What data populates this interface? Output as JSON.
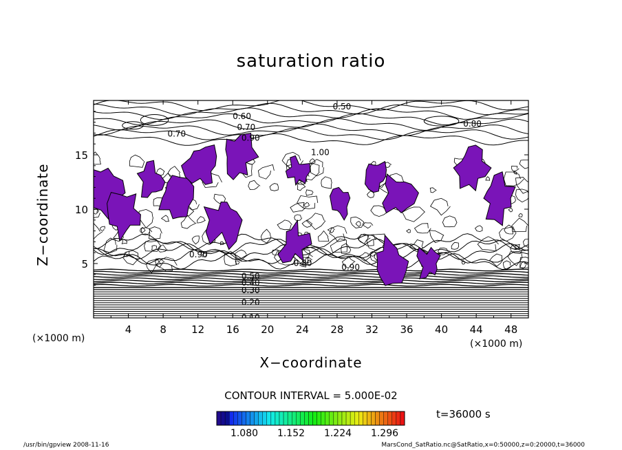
{
  "chart_data": {
    "type": "heatmap",
    "title": "saturation ratio",
    "xlabel": "X−coordinate",
    "ylabel": "Z−coordinate",
    "x_unit_left": "(×1000 m)",
    "x_unit_right": "(×1000 m)",
    "xlim": [
      0,
      50
    ],
    "ylim": [
      0,
      20
    ],
    "x_ticks": [
      "4",
      "8",
      "12",
      "16",
      "20",
      "24",
      "28",
      "32",
      "36",
      "40",
      "44",
      "48"
    ],
    "y_ticks": [
      "5",
      "10",
      "15"
    ],
    "contour_interval": "CONTOUR INTERVAL = 5.000E-02",
    "contour_labels": [
      "0.50",
      "0.60",
      "0.70",
      "0.80",
      "0.70",
      "0.90",
      "1.00",
      "0.90",
      "0.80",
      "0.90",
      "0.50",
      "0.40",
      "0.30",
      "0.20",
      "0.10"
    ],
    "colorbar_ticks": [
      "1.080",
      "1.152",
      "1.224",
      "1.296"
    ],
    "time": "t=36000 s",
    "shaded_fill_color": "#7a14b8",
    "supersaturated_patches": [
      {
        "x": 1.2,
        "z": 11.5
      },
      {
        "x": 3.5,
        "z": 9.5
      },
      {
        "x": 6.5,
        "z": 12.5
      },
      {
        "x": 9.5,
        "z": 11.0
      },
      {
        "x": 12.5,
        "z": 14.0
      },
      {
        "x": 15.0,
        "z": 9.0
      },
      {
        "x": 16.5,
        "z": 14.8
      },
      {
        "x": 23.5,
        "z": 13.5
      },
      {
        "x": 23.0,
        "z": 6.8
      },
      {
        "x": 28.5,
        "z": 10.5
      },
      {
        "x": 32.5,
        "z": 13.0
      },
      {
        "x": 35.0,
        "z": 11.5
      },
      {
        "x": 34.0,
        "z": 5.2
      },
      {
        "x": 38.5,
        "z": 5.0
      },
      {
        "x": 43.5,
        "z": 13.8
      },
      {
        "x": 46.5,
        "z": 11.0
      }
    ]
  },
  "footer": {
    "left": "/usr/bin/gpview   2008-11-16",
    "right": "MarsCond_SatRatio.nc@SatRatio,x=0:50000,z=0:20000,t=36000"
  }
}
